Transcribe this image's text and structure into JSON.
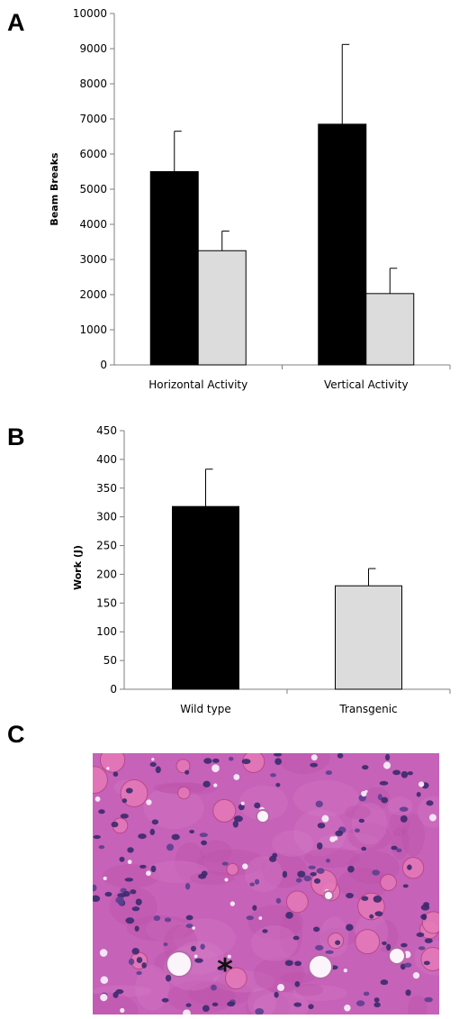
{
  "panels": {
    "a": "A",
    "b": "B",
    "c": "C"
  },
  "colors": {
    "wild_type": "#000000",
    "transgenic": "#dcdcdc",
    "axis": "#7f7f7f",
    "stain_base": "#c760b6"
  },
  "chart_data": [
    {
      "panel": "A",
      "type": "bar",
      "categories": [
        "Horizontal Activity",
        "Vertical Activity"
      ],
      "series": [
        {
          "values": [
            5500,
            6850
          ],
          "errors": [
            1150,
            2270
          ],
          "color": "#000000"
        },
        {
          "values": [
            3250,
            2030
          ],
          "errors": [
            560,
            720
          ],
          "color": "#dcdcdc"
        }
      ],
      "ylabel": "Beam Breaks",
      "xlabel": "",
      "ylim": [
        0,
        10000
      ],
      "yticks": [
        "0",
        "1000",
        "2000",
        "3000",
        "4000",
        "5000",
        "6000",
        "7000",
        "8000",
        "9000",
        "10000"
      ],
      "grid": false,
      "legend": "none"
    },
    {
      "panel": "B",
      "type": "bar",
      "categories": [
        "Wild type",
        "Transgenic"
      ],
      "series": [
        {
          "values": [
            318,
            180
          ],
          "errors": [
            65,
            30
          ],
          "colors": [
            "#000000",
            "#dcdcdc"
          ]
        }
      ],
      "ylabel": "Work (J)",
      "xlabel": "",
      "ylim": [
        0,
        450
      ],
      "yticks": [
        "0",
        "50",
        "100",
        "150",
        "200",
        "250",
        "300",
        "350",
        "400",
        "450"
      ],
      "grid": false,
      "legend": "none"
    }
  ],
  "image_c": {
    "annotation": "*"
  }
}
